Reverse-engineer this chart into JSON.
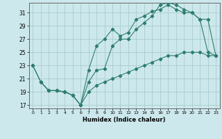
{
  "xlabel": "Humidex (Indice chaleur)",
  "bg_color": "#cce8ec",
  "grid_color": "#aacccc",
  "line_color": "#2e7d6e",
  "xlim": [
    -0.5,
    23.5
  ],
  "ylim": [
    16.5,
    32.5
  ],
  "xticks": [
    0,
    1,
    2,
    3,
    4,
    5,
    6,
    7,
    8,
    9,
    10,
    11,
    12,
    13,
    14,
    15,
    16,
    17,
    18,
    19,
    20,
    21,
    22,
    23
  ],
  "yticks": [
    17,
    19,
    21,
    23,
    25,
    27,
    29,
    31
  ],
  "line1_x": [
    0,
    1,
    2,
    3,
    4,
    5,
    6,
    7,
    8,
    9,
    10,
    11,
    12,
    13,
    14,
    15,
    16,
    17,
    18,
    19,
    20,
    21,
    22,
    23
  ],
  "line1_y": [
    23,
    20.5,
    19.2,
    19.2,
    19.0,
    18.5,
    17.0,
    20.5,
    22.3,
    22.5,
    26.0,
    27.0,
    27.0,
    28.5,
    29.5,
    30.5,
    32.2,
    32.5,
    32.2,
    31.5,
    31.0,
    30.0,
    25.0,
    24.5
  ],
  "line2_x": [
    0,
    1,
    2,
    3,
    4,
    5,
    6,
    7,
    8,
    9,
    10,
    11,
    12,
    13,
    14,
    15,
    16,
    17,
    18,
    19,
    20,
    21,
    22,
    23
  ],
  "line2_y": [
    23,
    20.5,
    19.2,
    19.2,
    19.0,
    18.5,
    17.0,
    22.3,
    26.0,
    27.0,
    28.5,
    27.5,
    28.0,
    30.0,
    30.5,
    31.2,
    31.5,
    32.2,
    31.5,
    31.0,
    31.0,
    30.0,
    30.0,
    24.5
  ],
  "line3_x": [
    1,
    2,
    3,
    4,
    5,
    6,
    7,
    8,
    9,
    10,
    11,
    12,
    13,
    14,
    15,
    16,
    17,
    18,
    19,
    20,
    21,
    22,
    23
  ],
  "line3_y": [
    20.5,
    19.2,
    19.2,
    19.0,
    18.5,
    17.0,
    19.0,
    20.0,
    20.5,
    21.0,
    21.5,
    22.0,
    22.5,
    23.0,
    23.5,
    24.0,
    24.5,
    24.5,
    25.0,
    25.0,
    25.0,
    24.5,
    24.5
  ]
}
